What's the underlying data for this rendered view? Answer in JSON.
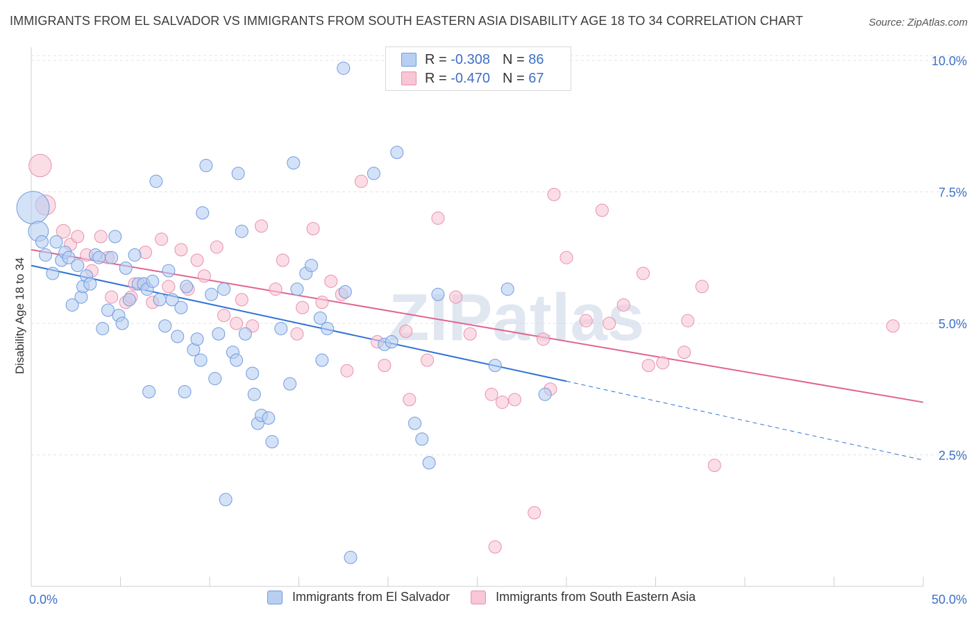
{
  "header": {
    "title": "IMMIGRANTS FROM EL SALVADOR VS IMMIGRANTS FROM SOUTH EASTERN ASIA DISABILITY AGE 18 TO 34 CORRELATION CHART",
    "source": "Source: ZipAtlas.com"
  },
  "stats": {
    "r_label": "R =",
    "n_label": "N =",
    "series1": {
      "r": "-0.308",
      "n": "86"
    },
    "series2": {
      "r": "-0.470",
      "n": "67"
    }
  },
  "colors": {
    "series1_fill": "#b8cff2",
    "series1_stroke": "#6f9ae0",
    "series1_line": "#2f72d6",
    "series2_fill": "#f8c6d5",
    "series2_stroke": "#e891ad",
    "series2_line": "#e0648f",
    "axis_text": "#3d6fc7"
  },
  "chart_data": {
    "type": "scatter",
    "title": "IMMIGRANTS FROM EL SALVADOR VS IMMIGRANTS FROM SOUTH EASTERN ASIA DISABILITY AGE 18 TO 34 CORRELATION CHART",
    "xlabel": "",
    "ylabel": "Disability Age 18 to 34",
    "xlim": [
      0,
      50
    ],
    "ylim": [
      0,
      10.25
    ],
    "x_tick_labels": [
      "0.0%",
      "50.0%"
    ],
    "y_ticks": [
      2.5,
      5.0,
      7.5,
      10.0
    ],
    "y_tick_labels": [
      "2.5%",
      "5.0%",
      "7.5%",
      "10.0%"
    ],
    "watermark": "ZIPatlas",
    "series": [
      {
        "name": "Immigrants from El Salvador",
        "trend": {
          "x0": 0,
          "y0": 6.1,
          "x1": 30,
          "y1": 3.9,
          "dashed_to_x": 50,
          "dashed_to_y": 2.4
        },
        "points": [
          [
            0.1,
            7.2,
            2.6
          ],
          [
            0.4,
            6.75,
            1.6
          ],
          [
            0.6,
            6.55,
            1.0
          ],
          [
            0.8,
            6.3,
            1.0
          ],
          [
            1.2,
            5.95,
            1.0
          ],
          [
            1.4,
            6.55,
            1.0
          ],
          [
            1.7,
            6.2,
            1.0
          ],
          [
            1.9,
            6.35,
            1.0
          ],
          [
            2.1,
            6.25,
            1.0
          ],
          [
            2.3,
            5.35,
            1.0
          ],
          [
            2.6,
            6.1,
            1.0
          ],
          [
            2.8,
            5.5,
            1.0
          ],
          [
            2.9,
            5.7,
            1.0
          ],
          [
            3.1,
            5.9,
            1.0
          ],
          [
            3.3,
            5.75,
            1.0
          ],
          [
            3.6,
            6.3,
            1.0
          ],
          [
            3.8,
            6.25,
            1.0
          ],
          [
            4.0,
            4.9,
            1.0
          ],
          [
            4.3,
            5.25,
            1.0
          ],
          [
            4.5,
            6.25,
            1.0
          ],
          [
            4.7,
            6.65,
            1.0
          ],
          [
            4.9,
            5.15,
            1.0
          ],
          [
            5.1,
            5.0,
            1.0
          ],
          [
            5.3,
            6.05,
            1.0
          ],
          [
            5.5,
            5.45,
            1.0
          ],
          [
            5.8,
            6.3,
            1.0
          ],
          [
            6.0,
            5.75,
            1.0
          ],
          [
            6.3,
            5.75,
            1.0
          ],
          [
            6.5,
            5.65,
            1.0
          ],
          [
            6.6,
            3.7,
            1.0
          ],
          [
            6.8,
            5.8,
            1.0
          ],
          [
            7.0,
            7.7,
            1.0
          ],
          [
            7.2,
            5.45,
            1.0
          ],
          [
            7.5,
            4.95,
            1.0
          ],
          [
            7.7,
            6.0,
            1.0
          ],
          [
            7.9,
            5.45,
            1.0
          ],
          [
            8.2,
            4.75,
            1.0
          ],
          [
            8.4,
            5.3,
            1.0
          ],
          [
            8.6,
            3.7,
            1.0
          ],
          [
            8.7,
            5.7,
            1.0
          ],
          [
            9.1,
            4.5,
            1.0
          ],
          [
            9.3,
            4.7,
            1.0
          ],
          [
            9.5,
            4.3,
            1.0
          ],
          [
            9.6,
            7.1,
            1.0
          ],
          [
            9.8,
            8.0,
            1.0
          ],
          [
            10.1,
            5.55,
            1.0
          ],
          [
            10.3,
            3.95,
            1.0
          ],
          [
            10.5,
            4.8,
            1.0
          ],
          [
            10.8,
            5.65,
            1.0
          ],
          [
            10.9,
            1.65,
            1.0
          ],
          [
            11.3,
            4.45,
            1.0
          ],
          [
            11.5,
            4.3,
            1.0
          ],
          [
            11.6,
            7.85,
            1.0
          ],
          [
            11.8,
            6.75,
            1.0
          ],
          [
            12.0,
            4.8,
            1.0
          ],
          [
            12.4,
            4.05,
            1.0
          ],
          [
            12.5,
            3.65,
            1.0
          ],
          [
            12.7,
            3.1,
            1.0
          ],
          [
            12.9,
            3.25,
            1.0
          ],
          [
            13.3,
            3.2,
            1.0
          ],
          [
            13.5,
            2.75,
            1.0
          ],
          [
            14.0,
            4.9,
            1.0
          ],
          [
            14.5,
            3.85,
            1.0
          ],
          [
            14.7,
            8.05,
            1.0
          ],
          [
            14.9,
            5.65,
            1.0
          ],
          [
            15.4,
            5.95,
            1.0
          ],
          [
            15.7,
            6.1,
            1.0
          ],
          [
            16.2,
            5.1,
            1.0
          ],
          [
            16.3,
            4.3,
            1.0
          ],
          [
            16.6,
            4.9,
            1.0
          ],
          [
            17.5,
            9.85,
            1.0
          ],
          [
            17.6,
            5.6,
            1.0
          ],
          [
            17.9,
            0.55,
            1.0
          ],
          [
            19.2,
            7.85,
            1.0
          ],
          [
            19.8,
            4.6,
            1.0
          ],
          [
            20.2,
            4.65,
            1.0
          ],
          [
            20.5,
            8.25,
            1.0
          ],
          [
            21.5,
            3.1,
            1.0
          ],
          [
            21.9,
            2.8,
            1.0
          ],
          [
            22.3,
            2.35,
            1.0
          ],
          [
            22.8,
            5.55,
            1.0
          ],
          [
            26.0,
            4.2,
            1.0
          ],
          [
            26.7,
            5.65,
            1.0
          ],
          [
            28.8,
            3.65,
            1.0
          ]
        ]
      },
      {
        "name": "Immigrants from South Eastern Asia",
        "trend": {
          "x0": 0,
          "y0": 6.4,
          "x1": 50,
          "y1": 3.5
        },
        "points": [
          [
            0.5,
            8.0,
            1.8
          ],
          [
            0.8,
            7.25,
            1.6
          ],
          [
            1.8,
            6.75,
            1.1
          ],
          [
            2.2,
            6.5,
            1.0
          ],
          [
            2.6,
            6.65,
            1.0
          ],
          [
            3.1,
            6.3,
            1.0
          ],
          [
            3.4,
            6.0,
            1.0
          ],
          [
            3.9,
            6.65,
            1.0
          ],
          [
            4.3,
            6.25,
            1.0
          ],
          [
            4.5,
            5.5,
            1.0
          ],
          [
            5.3,
            5.4,
            1.0
          ],
          [
            5.6,
            5.5,
            1.0
          ],
          [
            5.8,
            5.75,
            1.0
          ],
          [
            6.3,
            5.75,
            1.0
          ],
          [
            6.4,
            6.35,
            1.0
          ],
          [
            6.8,
            5.4,
            1.0
          ],
          [
            7.3,
            6.6,
            1.0
          ],
          [
            7.7,
            5.7,
            1.0
          ],
          [
            8.4,
            6.4,
            1.0
          ],
          [
            8.8,
            5.65,
            1.0
          ],
          [
            9.3,
            6.2,
            1.0
          ],
          [
            9.7,
            5.9,
            1.0
          ],
          [
            10.4,
            6.45,
            1.0
          ],
          [
            10.8,
            5.15,
            1.0
          ],
          [
            11.5,
            5.0,
            1.0
          ],
          [
            11.8,
            5.45,
            1.0
          ],
          [
            12.4,
            4.95,
            1.0
          ],
          [
            12.9,
            6.85,
            1.0
          ],
          [
            13.7,
            5.65,
            1.0
          ],
          [
            14.1,
            6.2,
            1.0
          ],
          [
            14.9,
            4.8,
            1.0
          ],
          [
            15.2,
            5.3,
            1.0
          ],
          [
            15.8,
            6.8,
            1.0
          ],
          [
            16.3,
            5.4,
            1.0
          ],
          [
            16.8,
            5.8,
            1.0
          ],
          [
            17.4,
            5.55,
            1.0
          ],
          [
            17.7,
            4.1,
            1.0
          ],
          [
            18.5,
            7.7,
            1.0
          ],
          [
            19.4,
            4.65,
            1.0
          ],
          [
            19.8,
            4.2,
            1.0
          ],
          [
            21.0,
            4.85,
            1.0
          ],
          [
            21.2,
            3.55,
            1.0
          ],
          [
            22.2,
            4.3,
            1.0
          ],
          [
            22.8,
            7.0,
            1.0
          ],
          [
            23.8,
            5.5,
            1.0
          ],
          [
            24.6,
            4.8,
            1.0
          ],
          [
            25.8,
            3.65,
            1.0
          ],
          [
            26.0,
            0.75,
            1.0
          ],
          [
            26.4,
            3.5,
            1.0
          ],
          [
            27.1,
            3.55,
            1.0
          ],
          [
            28.2,
            1.4,
            1.0
          ],
          [
            28.7,
            4.7,
            1.0
          ],
          [
            29.1,
            3.75,
            1.0
          ],
          [
            29.3,
            7.45,
            1.0
          ],
          [
            30.0,
            6.25,
            1.0
          ],
          [
            31.1,
            5.05,
            1.0
          ],
          [
            32.0,
            7.15,
            1.0
          ],
          [
            32.4,
            5.0,
            1.0
          ],
          [
            33.2,
            5.35,
            1.0
          ],
          [
            34.6,
            4.2,
            1.0
          ],
          [
            35.4,
            4.25,
            1.0
          ],
          [
            36.6,
            4.45,
            1.0
          ],
          [
            36.8,
            5.05,
            1.0
          ],
          [
            37.6,
            5.7,
            1.0
          ],
          [
            38.3,
            2.3,
            1.0
          ],
          [
            48.3,
            4.95,
            1.0
          ],
          [
            34.3,
            5.95,
            1.0
          ]
        ]
      }
    ]
  }
}
